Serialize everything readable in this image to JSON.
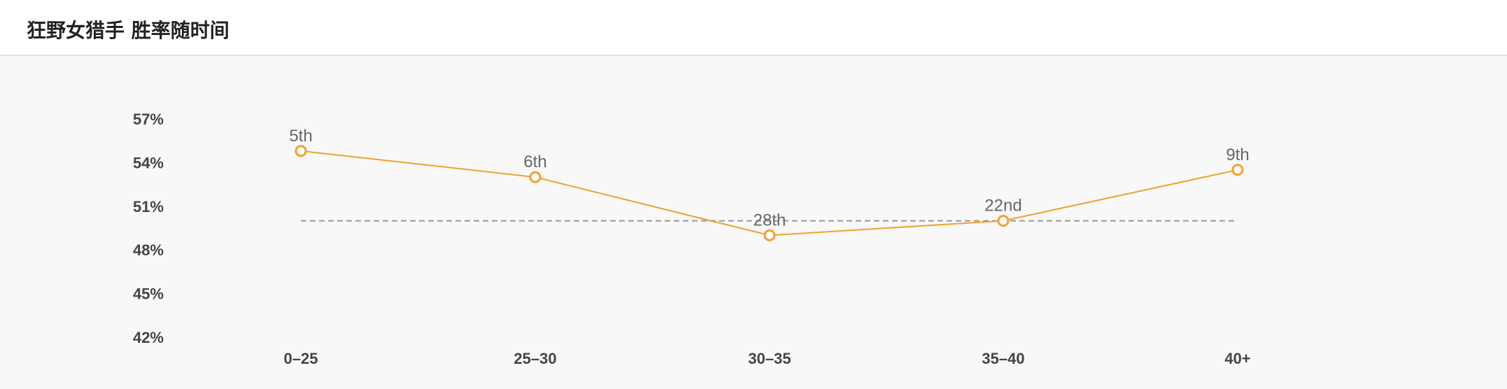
{
  "header": {
    "title": "狂野女猎手 胜率随时间"
  },
  "chart_data": {
    "type": "line",
    "categories": [
      "0–25",
      "25–30",
      "30–35",
      "35–40",
      "40+"
    ],
    "values": [
      54.8,
      53.0,
      49.0,
      50.0,
      53.5
    ],
    "data_labels": [
      "5th",
      "6th",
      "28th",
      "22nd",
      "9th"
    ],
    "reference_line": 50.0,
    "ylim": [
      42,
      57
    ],
    "yticks": [
      57,
      54,
      51,
      48,
      45,
      42
    ],
    "ytick_labels": [
      "57%",
      "54%",
      "51%",
      "48%",
      "45%",
      "42%"
    ],
    "grid": false,
    "line_color": "#f0a12e",
    "reference_color": "#999999"
  }
}
